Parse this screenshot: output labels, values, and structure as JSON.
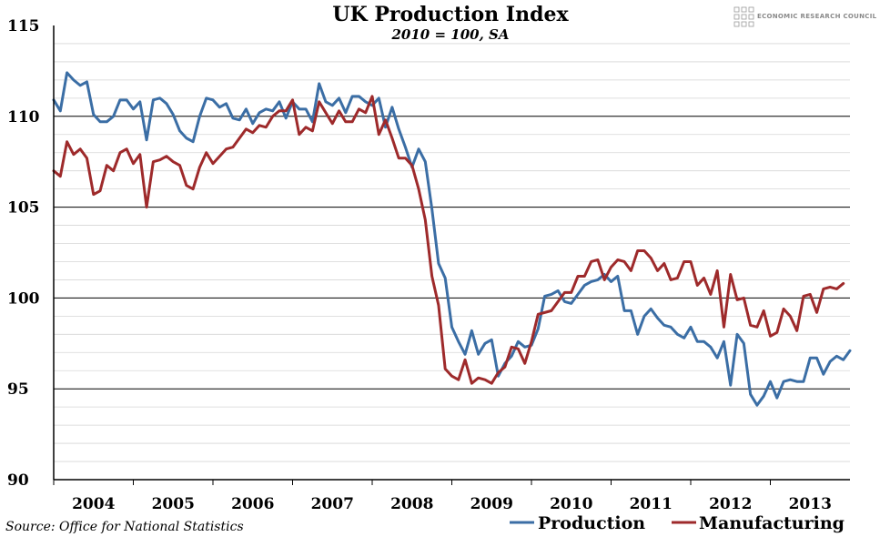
{
  "brand": "ECONOMIC RESEARCH COUNCIL",
  "source": "Source: Office for National Statistics",
  "chart_data": {
    "type": "line",
    "title": "UK Production Index",
    "subtitle": "2010 = 100, SA",
    "xlabel": "",
    "ylabel": "",
    "ylim": [
      90,
      115
    ],
    "yticks": [
      "115",
      "110",
      "105",
      "100",
      "95",
      "90"
    ],
    "xticks": [
      "2004",
      "2005",
      "2006",
      "2007",
      "2008",
      "2009",
      "2010",
      "2011",
      "2012",
      "2013"
    ],
    "x_start": "2004-01",
    "frequency": "monthly",
    "grid": true,
    "legend_position": "bottom-right",
    "series": [
      {
        "name": "Production",
        "color": "#3b6ea5",
        "values": [
          110.9,
          110.3,
          112.4,
          112.0,
          111.7,
          111.9,
          110.1,
          109.7,
          109.7,
          110.0,
          110.9,
          110.9,
          110.4,
          110.8,
          108.7,
          110.9,
          111.0,
          110.7,
          110.1,
          109.2,
          108.8,
          108.6,
          110.0,
          111.0,
          110.9,
          110.5,
          110.7,
          109.9,
          109.8,
          110.4,
          109.6,
          110.2,
          110.4,
          110.3,
          110.8,
          109.9,
          110.8,
          110.4,
          110.4,
          109.7,
          111.8,
          110.8,
          110.6,
          111.0,
          110.2,
          111.1,
          111.1,
          110.8,
          110.6,
          111.0,
          109.4,
          110.5,
          109.3,
          108.3,
          107.2,
          108.2,
          107.5,
          104.9,
          101.9,
          101.1,
          98.4,
          97.6,
          96.9,
          98.2,
          96.9,
          97.5,
          97.7,
          95.7,
          96.4,
          96.8,
          97.6,
          97.3,
          97.4,
          98.3,
          100.1,
          100.2,
          100.4,
          99.8,
          99.7,
          100.2,
          100.7,
          100.9,
          101.0,
          101.3,
          100.9,
          101.2,
          99.3,
          99.3,
          98.0,
          99.0,
          99.4,
          98.9,
          98.5,
          98.4,
          98.0,
          97.8,
          98.4,
          97.6,
          97.6,
          97.3,
          96.7,
          97.6,
          95.2,
          98.0,
          97.5,
          94.7,
          94.1,
          94.6,
          95.4,
          94.5,
          95.4,
          95.5,
          95.4,
          95.4,
          96.7,
          96.7,
          95.8,
          96.5,
          96.8,
          96.6,
          97.1
        ]
      },
      {
        "name": "Manufacturing",
        "color": "#9e2a2b",
        "values": [
          107.0,
          106.7,
          108.6,
          107.9,
          108.2,
          107.7,
          105.7,
          105.9,
          107.3,
          107.0,
          108.0,
          108.2,
          107.4,
          107.9,
          105.0,
          107.5,
          107.6,
          107.8,
          107.5,
          107.3,
          106.2,
          106.0,
          107.2,
          108.0,
          107.4,
          107.8,
          108.2,
          108.3,
          108.8,
          109.3,
          109.1,
          109.5,
          109.4,
          110.0,
          110.3,
          110.3,
          110.9,
          109.0,
          109.4,
          109.2,
          110.8,
          110.2,
          109.6,
          110.3,
          109.7,
          109.7,
          110.4,
          110.2,
          111.1,
          109.0,
          109.8,
          108.8,
          107.7,
          107.7,
          107.3,
          106.0,
          104.3,
          101.2,
          99.6,
          96.1,
          95.7,
          95.5,
          96.6,
          95.3,
          95.6,
          95.5,
          95.3,
          95.9,
          96.2,
          97.3,
          97.2,
          96.4,
          97.6,
          99.1,
          99.2,
          99.3,
          99.8,
          100.3,
          100.3,
          101.2,
          101.2,
          102.0,
          102.1,
          101.0,
          101.7,
          102.1,
          102.0,
          101.5,
          102.6,
          102.6,
          102.2,
          101.5,
          101.9,
          101.0,
          101.1,
          102.0,
          102.0,
          100.7,
          101.1,
          100.2,
          101.5,
          98.4,
          101.3,
          99.9,
          100.0,
          98.5,
          98.4,
          99.3,
          97.9,
          98.1,
          99.4,
          99.0,
          98.2,
          100.1,
          100.2,
          99.2,
          100.5,
          100.6,
          100.5,
          100.8
        ]
      }
    ]
  }
}
